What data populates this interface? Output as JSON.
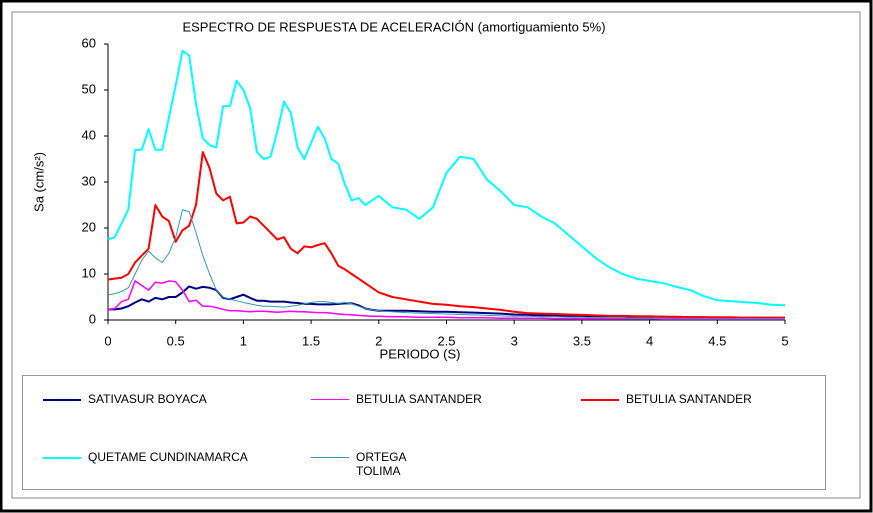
{
  "chart_data": {
    "type": "line",
    "title": "ESPECTRO DE RESPUESTA DE ACELERACIÓN  (amortiguamiento 5%)",
    "x_label": "PERIODO (S)",
    "y_label": "Sa (cm/s²)",
    "xlim": [
      0,
      5
    ],
    "xticks": [
      0,
      0.5,
      1,
      1.5,
      2,
      2.5,
      3,
      3.5,
      4,
      4.5,
      5
    ],
    "ylim": [
      0,
      60
    ],
    "yticks": [
      0,
      10,
      20,
      30,
      40,
      50,
      60
    ],
    "grid": false,
    "x": [
      0,
      0.05,
      0.1,
      0.15,
      0.2,
      0.25,
      0.3,
      0.35,
      0.4,
      0.45,
      0.5,
      0.55,
      0.6,
      0.65,
      0.7,
      0.75,
      0.8,
      0.85,
      0.9,
      0.95,
      1,
      1.05,
      1.1,
      1.15,
      1.2,
      1.25,
      1.3,
      1.35,
      1.4,
      1.45,
      1.5,
      1.55,
      1.6,
      1.65,
      1.7,
      1.75,
      1.8,
      1.85,
      1.9,
      1.95,
      2,
      2.1,
      2.2,
      2.3,
      2.4,
      2.5,
      2.6,
      2.7,
      2.8,
      2.9,
      3,
      3.1,
      3.2,
      3.3,
      3.4,
      3.5,
      3.6,
      3.7,
      3.8,
      3.9,
      4,
      4.1,
      4.2,
      4.3,
      4.4,
      4.5,
      4.6,
      4.7,
      4.8,
      4.9,
      5
    ],
    "series": [
      {
        "name": "SATIVASUR BOYACA",
        "color": "#000080",
        "width": 2,
        "values": [
          2.3,
          2.3,
          2.5,
          3,
          3.8,
          4.5,
          4,
          4.8,
          4.5,
          5,
          5,
          6,
          7.3,
          6.8,
          7.2,
          7,
          6.5,
          4.8,
          4.5,
          5,
          5.5,
          4.8,
          4.2,
          4.2,
          4,
          4,
          4,
          3.8,
          3.7,
          3.5,
          3.5,
          3.4,
          3.4,
          3.4,
          3.5,
          3.6,
          3.6,
          3.2,
          2.5,
          2.2,
          2,
          2,
          2,
          1.9,
          1.8,
          1.8,
          1.7,
          1.6,
          1.5,
          1.4,
          1.2,
          1.1,
          1,
          1,
          0.9,
          0.9,
          0.8,
          0.8,
          0.8,
          0.7,
          0.7,
          0.7,
          0.6,
          0.6,
          0.6,
          0.5,
          0.5,
          0.5,
          0.5,
          0.5,
          0.5
        ]
      },
      {
        "name": "BETULIA SANTANDER",
        "color": "#ff00ff",
        "width": 1.5,
        "values": [
          2.3,
          2.5,
          4,
          4.5,
          8.5,
          7.5,
          6.5,
          8.2,
          8,
          8.5,
          8.3,
          6.5,
          4,
          4.3,
          3,
          3,
          2.7,
          2.3,
          2,
          2,
          1.9,
          1.8,
          1.9,
          1.9,
          1.8,
          1.7,
          1.8,
          1.9,
          1.8,
          1.8,
          1.7,
          1.6,
          1.6,
          1.5,
          1.3,
          1.2,
          1.1,
          1,
          0.9,
          0.8,
          0.8,
          0.7,
          0.7,
          0.6,
          0.6,
          0.6,
          0.5,
          0.5,
          0.5,
          0.4,
          0.4,
          0.4,
          0.4,
          0.3,
          0.3,
          0.3,
          0.3,
          0.3,
          0.3,
          0.3,
          0.3,
          0.2,
          0.2,
          0.2,
          0.2,
          0.2,
          0.2,
          0.2,
          0.2,
          0.2,
          0.2
        ]
      },
      {
        "name": "BETULIA SANTANDER",
        "color": "#ff0000",
        "width": 2,
        "values": [
          8.8,
          9,
          9.2,
          10,
          12.5,
          14,
          15.5,
          25,
          22.5,
          21.5,
          17,
          19.5,
          20.5,
          25,
          36.5,
          33,
          27.5,
          26,
          26.8,
          21,
          21.2,
          22.5,
          22,
          20.5,
          19,
          17.5,
          18,
          15.5,
          14.5,
          16,
          15.8,
          16.3,
          16.7,
          14.5,
          11.8,
          11,
          10,
          9,
          8,
          7,
          6,
          5,
          4.5,
          4,
          3.5,
          3.3,
          3,
          2.8,
          2.5,
          2.2,
          1.8,
          1.5,
          1.4,
          1.3,
          1.2,
          1.1,
          1,
          0.9,
          0.9,
          0.8,
          0.8,
          0.7,
          0.7,
          0.6,
          0.6,
          0.6,
          0.6,
          0.5,
          0.5,
          0.5,
          0.5
        ]
      },
      {
        "name": "QUETAME CUNDINAMARCA",
        "color": "#00ffff",
        "width": 2,
        "values": [
          17.5,
          18,
          21,
          24,
          37,
          37,
          41.5,
          37,
          37,
          44,
          51,
          58.5,
          57.5,
          47,
          39.5,
          38,
          37.5,
          46.5,
          46.5,
          52,
          50,
          46,
          36.5,
          35,
          35.5,
          41,
          47.5,
          45,
          37.5,
          35,
          38.5,
          42,
          39.5,
          35,
          34,
          29.5,
          26,
          26.5,
          25,
          26,
          27,
          24.5,
          24,
          22,
          24.5,
          32,
          35.5,
          35,
          30.5,
          28,
          25,
          24.5,
          22.5,
          21,
          18.5,
          16,
          13.5,
          11.5,
          10,
          9,
          8.5,
          8,
          7.2,
          6.5,
          5.2,
          4.3,
          4.1,
          3.9,
          3.7,
          3.3,
          3.2
        ]
      },
      {
        "name": "ORTEGA TOLIMA",
        "color": "#3399bb",
        "width": 1,
        "values": [
          5.5,
          5.7,
          6.2,
          7,
          10,
          13,
          15,
          13.5,
          12.5,
          14.5,
          18,
          24,
          23.5,
          19,
          14,
          10,
          6.5,
          5,
          4.5,
          4.2,
          3.8,
          3.5,
          3.2,
          3,
          3,
          2.9,
          2.8,
          3,
          3.2,
          3.5,
          3.8,
          4,
          4,
          3.8,
          3.6,
          3.8,
          3.5,
          3,
          2.5,
          2.2,
          2,
          1.8,
          1.6,
          1.5,
          1.4,
          1.3,
          1.2,
          1.1,
          1,
          0.9,
          0.8,
          0.8,
          0.7,
          0.7,
          0.6,
          0.6,
          0.5,
          0.5,
          0.5,
          0.4,
          0.4,
          0.4,
          0.4,
          0.3,
          0.3,
          0.3,
          0.3,
          0.3,
          0.3,
          0.3,
          0.3
        ]
      }
    ]
  }
}
